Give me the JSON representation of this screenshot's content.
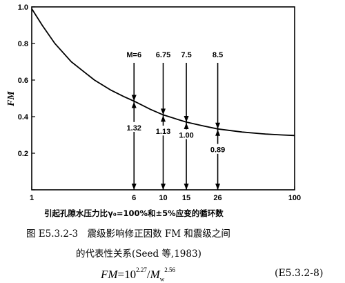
{
  "chart_data": {
    "type": "line",
    "xscale": "log",
    "xlim": [
      1,
      100
    ],
    "ylim": [
      0,
      1.0
    ],
    "xticks": [
      1,
      6,
      10,
      15,
      26,
      100
    ],
    "xtick_labels": [
      "1",
      "6",
      "10",
      "15",
      "26",
      "100"
    ],
    "yticks": [
      0,
      0.2,
      0.4,
      0.6,
      0.8,
      1.0
    ],
    "ytick_labels": [
      "",
      "0.2",
      "0.4",
      "0.6",
      "0.8",
      "1.0"
    ],
    "ylabel": "FM",
    "xlabel": "引起孔隙水压力比γ₀=100%和±5%应变的循环数",
    "grid": false,
    "curve": {
      "x": [
        1,
        1.2,
        1.5,
        2,
        3,
        4,
        5,
        6,
        8,
        10,
        15,
        20,
        26,
        40,
        60,
        80,
        100
      ],
      "y": [
        0.99,
        0.9,
        0.8,
        0.7,
        0.6,
        0.545,
        0.51,
        0.485,
        0.44,
        0.41,
        0.37,
        0.35,
        0.333,
        0.316,
        0.305,
        0.3,
        0.297
      ]
    },
    "annotations": [
      {
        "x": 6,
        "magnitude": "M=6",
        "factor": "1.32",
        "y_curve": 0.485,
        "y_factor": 0.34
      },
      {
        "x": 10,
        "magnitude": "6.75",
        "factor": "1.13",
        "y_curve": 0.41,
        "y_factor": 0.32
      },
      {
        "x": 15,
        "magnitude": "7.5",
        "factor": "1.00",
        "y_curve": 0.37,
        "y_factor": 0.3
      },
      {
        "x": 26,
        "magnitude": "8.5",
        "factor": "0.89",
        "y_curve": 0.333,
        "y_factor": 0.22
      }
    ]
  },
  "caption": {
    "line1": "图 E5.3.2-3　震级影响修正因数 FM 和震级之间",
    "line2": "的代表性关系(Seed 等,1983)"
  },
  "formula": {
    "lhs": "FM",
    "eq": "=10",
    "exp": "2.27",
    "slash": "/",
    "m": "M",
    "sub": "w",
    "mexp": "2.56",
    "eqno": "(E5.3.2-8)"
  }
}
